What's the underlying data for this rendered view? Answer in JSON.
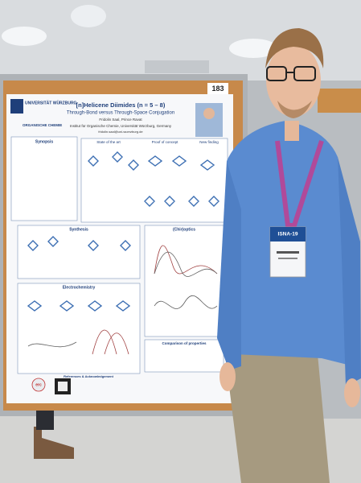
{
  "board_number": "183",
  "poster": {
    "logo": {
      "university": "UNIVERSITÄT WÜRZBURG",
      "department": "ORGANISCHE CHEMIE"
    },
    "title": "[n]Helicene Diimides (n = 5 – 8)",
    "subtitle": "Through-Bond versus Through-Space Conjugation",
    "authors": "Fridolin Saal, Prince Ravat",
    "affiliation": "Institut für Organische Chemie, Universität Würzburg, Germany",
    "email": "fridolin.saal@uni-wuerzburg.de",
    "sections": {
      "synopsis": "Synopsis",
      "state_of_the_art": "State of the art",
      "proof_of_concept": "Proof of concept",
      "new_finding": "New finding",
      "synthesis": "Synthesis",
      "chiroptics": "(Chir)optics",
      "electrochemistry": "Electrochemistry",
      "comparison": "Comparison of properties",
      "references": "References & Acknowledgement"
    },
    "funder": "erc"
  },
  "badge": "ISNA-19"
}
